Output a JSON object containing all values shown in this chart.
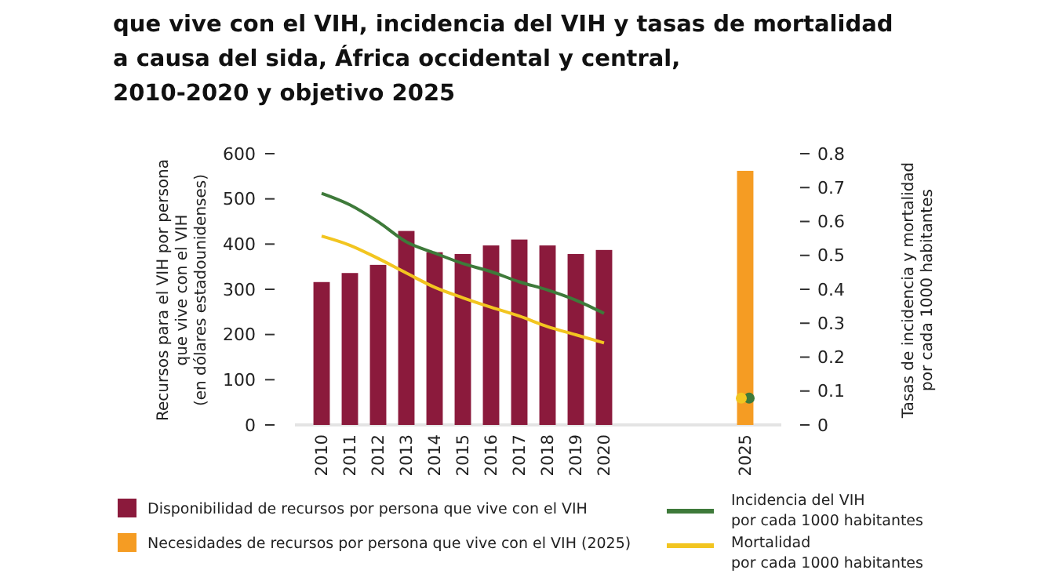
{
  "chart_data": {
    "type": "bar",
    "title": "que vive con el VIH, incidencia del VIH y tasas de mortalidad\na causa del sida, África occidental y central,\n2010-2020 y objetivo 2025",
    "ylabel": "Recursos para el VIH por persona\nque vive con el VIH\n(en dólares estadounidenses)",
    "y2label": "Tasas de incidencia y mortalidad\npor cada 1000 habitantes",
    "categories": [
      "2010",
      "2011",
      "2012",
      "2013",
      "2014",
      "2015",
      "2016",
      "2017",
      "2018",
      "2019",
      "2020",
      null,
      null,
      null,
      null,
      "2025"
    ],
    "stacked": true,
    "series": [
      {
        "name": "Disponibilidad de recursos por persona que vive con el VIH",
        "color": "#8b1a3c",
        "values": [
          316,
          336,
          354,
          429,
          382,
          378,
          397,
          410,
          397,
          378,
          387,
          null,
          null,
          null,
          null,
          null
        ]
      },
      {
        "name": "Necesidades de recursos por persona que vive con el VIH (2025)",
        "color": "#f59c23",
        "values": [
          null,
          null,
          null,
          null,
          null,
          null,
          null,
          null,
          null,
          null,
          null,
          null,
          null,
          null,
          null,
          562
        ]
      },
      {
        "name": "Incidencia del VIH\npor cada 1000 habitantes",
        "type": "line",
        "axis": "y2",
        "color": "#3e7a3a",
        "values": [
          0.683,
          0.649,
          0.599,
          0.54,
          0.507,
          0.476,
          0.452,
          0.422,
          0.398,
          0.368,
          0.329,
          null,
          null,
          null,
          null,
          0.079
        ]
      },
      {
        "name": "Mortalidad\npor cada 1000 habitantes",
        "type": "line",
        "axis": "y2",
        "color": "#f2c520",
        "values": [
          0.557,
          0.53,
          0.491,
          0.448,
          0.406,
          0.375,
          0.347,
          0.321,
          0.29,
          0.266,
          0.242,
          null,
          null,
          null,
          null,
          0.079
        ]
      }
    ],
    "ylim": [
      0,
      600
    ],
    "yticks": [
      0,
      100,
      200,
      300,
      400,
      500,
      600
    ],
    "y2lim": [
      0,
      0.8
    ],
    "y2ticks": [
      {
        "value": 0,
        "label": "0"
      },
      {
        "value": 0.1,
        "label": "0.1"
      },
      {
        "value": 0.2,
        "label": "0.2"
      },
      {
        "value": 0.3,
        "label": "0.3"
      },
      {
        "value": 0.4,
        "label": "0.4"
      },
      {
        "value": 0.5,
        "label": "0.5"
      },
      {
        "value": 0.6,
        "label": "0.6"
      },
      {
        "value": 0.7,
        "label": "0.7"
      },
      {
        "value": 0.8,
        "label": "0.8"
      }
    ],
    "legend": "bottom",
    "grid": false,
    "line_style": "solid"
  }
}
